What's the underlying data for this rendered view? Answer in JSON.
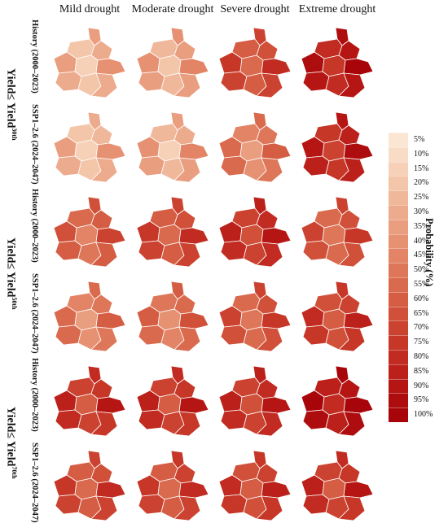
{
  "column_headers": [
    "Mild drought",
    "Moderate drought",
    "Severe drought",
    "Extreme drought"
  ],
  "groups": [
    {
      "label_prefix": "Yield≤ Yield",
      "label_sup": "30th",
      "rows": [
        {
          "label": "History (2000–2023)",
          "intensity": [
            0.22,
            0.28,
            0.62,
            0.85
          ]
        },
        {
          "label": "SSP1–2.6 (2024–2047)",
          "intensity": [
            0.2,
            0.25,
            0.45,
            0.8
          ]
        }
      ]
    },
    {
      "label_prefix": "Yield≤ Yield",
      "label_sup": "50th",
      "rows": [
        {
          "label": "History (2000–2023)",
          "intensity": [
            0.55,
            0.62,
            0.75,
            0.6
          ]
        },
        {
          "label": "SSP1–2.6 (2024–2047)",
          "intensity": [
            0.45,
            0.5,
            0.6,
            0.68
          ]
        }
      ]
    },
    {
      "label_prefix": "Yield≤ Yield",
      "label_sup": "70th",
      "rows": [
        {
          "label": "History (2000–2023)",
          "intensity": [
            0.72,
            0.72,
            0.75,
            0.9
          ]
        },
        {
          "label": "SSP1–2.6 (2024–2047)",
          "intensity": [
            0.62,
            0.65,
            0.68,
            0.72
          ]
        }
      ]
    }
  ],
  "legend": {
    "title": "Probability (%)",
    "labels": [
      "5%",
      "10%",
      "15%",
      "20%",
      "25%",
      "30%",
      "35%",
      "40%",
      "45%",
      "50%",
      "55%",
      "60%",
      "65%",
      "70%",
      "75%",
      "80%",
      "85%",
      "90%",
      "95%",
      "100%"
    ],
    "colors": [
      "#fbe6d4",
      "#f8dcc6",
      "#f6d1b8",
      "#f3c5a9",
      "#f0b89b",
      "#edab8d",
      "#ea9e80",
      "#e69172",
      "#e28465",
      "#de7759",
      "#da6a4e",
      "#d55d43",
      "#d05039",
      "#cb4330",
      "#c63728",
      "#c12b21",
      "#bb201a",
      "#b51614",
      "#ae0d0f",
      "#a8050b"
    ]
  }
}
